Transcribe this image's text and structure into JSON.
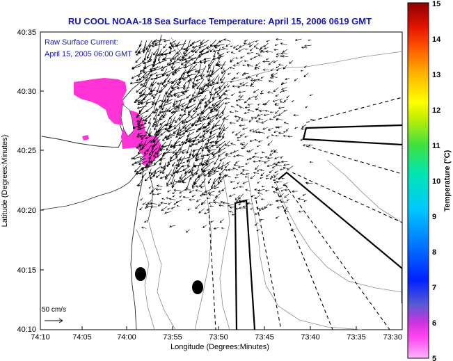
{
  "title": "RU COOL  NOAA-18  Sea Surface Temperature:  April 15, 2006 0619 GMT",
  "annotation": {
    "line1": "Raw Surface Current:",
    "line2": "April 15, 2005 06:00 GMT"
  },
  "axes": {
    "xlabel": "Longitude (Degrees:Minutes)",
    "ylabel": "Latitude (Degrees:Minutes)",
    "x_ticks": [
      "74:10",
      "74:05",
      "74:00",
      "73:55",
      "73:50",
      "73:45",
      "73:40",
      "73:35",
      "73:30"
    ],
    "y_ticks": [
      "40:10",
      "40:15",
      "40:20",
      "40:25",
      "40:30",
      "40:35"
    ]
  },
  "scale_bar": {
    "label": "50 cm/s"
  },
  "colorbar": {
    "label": "Temperature (°C)",
    "min": 5,
    "max": 15,
    "ticks": [
      "5",
      "6",
      "7",
      "8",
      "9",
      "10",
      "11",
      "12",
      "13",
      "14",
      "15"
    ],
    "colors": [
      "#ff8cff",
      "#ff33e6",
      "#5a5ad2",
      "#0026ff",
      "#00a8ff",
      "#00eaa0",
      "#7ee000",
      "#ffff00",
      "#ff9a00",
      "#ff2800",
      "#8c0000"
    ]
  },
  "markers": {
    "buoy_color": "#000000",
    "warm_patch_color": "#ff33d6"
  }
}
